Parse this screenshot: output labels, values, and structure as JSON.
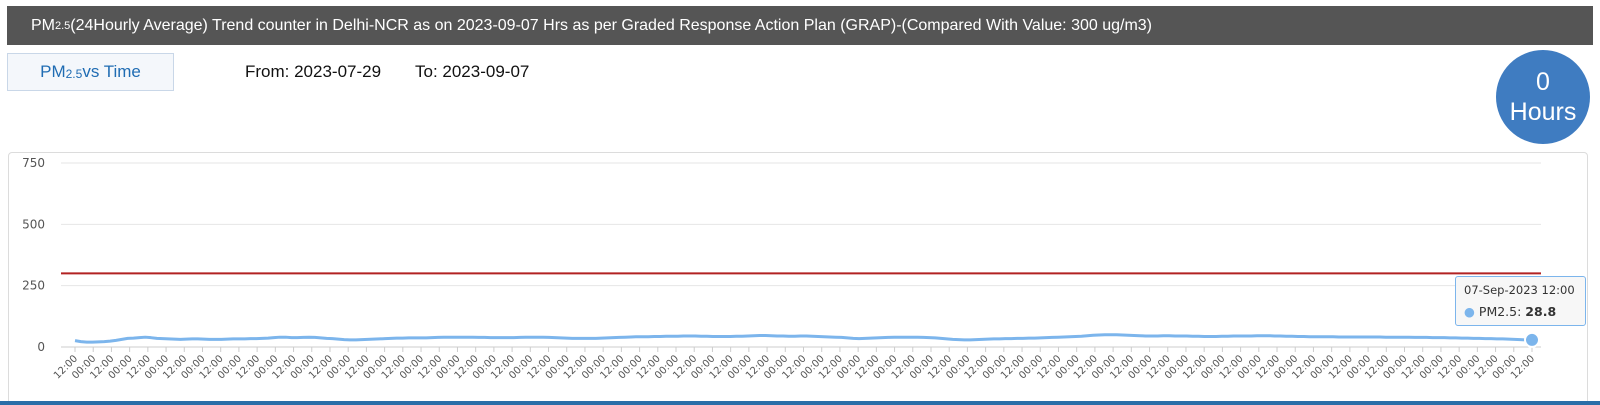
{
  "header": {
    "title_prefix": "PM",
    "title_sub": "2.5",
    "title_rest": " (24Hourly Average) Trend counter in Delhi-NCR as on 2023-09-07 Hrs as per Graded Response Action Plan (GRAP)-(Compared With Value: 300 ug/m3)"
  },
  "tab": {
    "label_prefix": "PM",
    "label_sub": "2.5",
    "label_rest": " vs Time"
  },
  "range": {
    "from": "From: 2023-07-29",
    "to": "To: 2023-09-07"
  },
  "badge": {
    "value": "0",
    "unit": "Hours"
  },
  "tooltip": {
    "date": "07-Sep-2023 12:00",
    "series": "PM2.5: ",
    "value": "28.8",
    "marker": "●"
  },
  "colors": {
    "line": "#7cb5ec",
    "threshold": "#b22222",
    "badge": "#3f7cc1",
    "header": "#555555",
    "bottom_bar": "#2a6ea8"
  },
  "chart_data": {
    "type": "line",
    "title": "",
    "xlabel": "",
    "ylabel": "",
    "ylim": [
      0,
      750
    ],
    "yticks": [
      0,
      250,
      500,
      750
    ],
    "grid": true,
    "legend": "none",
    "threshold": 300,
    "x_tick_labels": [
      "12:00",
      "00:00",
      "12:00",
      "00:00",
      "12:00",
      "00:00",
      "12:00",
      "00:00",
      "12:00",
      "00:00",
      "12:00",
      "00:00",
      "12:00",
      "00:00",
      "12:00",
      "00:00",
      "12:00",
      "00:00",
      "12:00",
      "00:00",
      "12:00",
      "00:00",
      "12:00",
      "00:00",
      "12:00",
      "00:00",
      "12:00",
      "00:00",
      "12:00",
      "00:00",
      "12:00",
      "00:00",
      "12:00",
      "00:00",
      "12:00",
      "00:00",
      "12:00",
      "00:00",
      "12:00",
      "00:00",
      "12:00",
      "00:00",
      "12:00",
      "00:00",
      "12:00",
      "00:00",
      "12:00",
      "00:00",
      "12:00",
      "00:00",
      "12:00",
      "00:00",
      "12:00",
      "00:00",
      "12:00",
      "00:00",
      "12:00",
      "00:00",
      "12:00",
      "00:00",
      "12:00",
      "00:00",
      "12:00",
      "00:00",
      "12:00",
      "00:00",
      "12:00",
      "00:00",
      "12:00",
      "00:00",
      "12:00",
      "00:00",
      "12:00",
      "00:00",
      "12:00",
      "00:00",
      "12:00",
      "00:00",
      "12:00",
      "00:00",
      "12:00"
    ],
    "series": [
      {
        "name": "PM2.5",
        "values": [
          26,
          22,
          20,
          20,
          21,
          22,
          24,
          27,
          31,
          35,
          36,
          38,
          40,
          38,
          35,
          34,
          33,
          32,
          31,
          32,
          33,
          33,
          32,
          31,
          31,
          31,
          32,
          33,
          33,
          33,
          34,
          34,
          35,
          36,
          38,
          40,
          40,
          38,
          38,
          39,
          40,
          39,
          37,
          35,
          34,
          32,
          30,
          29,
          29,
          30,
          31,
          32,
          33,
          34,
          35,
          36,
          36,
          37,
          37,
          37,
          37,
          38,
          39,
          40,
          40,
          40,
          40,
          40,
          40,
          39,
          39,
          38,
          38,
          38,
          38,
          38,
          39,
          40,
          40,
          40,
          40,
          39,
          38,
          37,
          36,
          35,
          35,
          35,
          35,
          35,
          36,
          37,
          38,
          39,
          40,
          41,
          42,
          42,
          42,
          43,
          43,
          44,
          44,
          44,
          45,
          45,
          45,
          44,
          44,
          43,
          43,
          43,
          43,
          44,
          44,
          45,
          46,
          47,
          47,
          46,
          45,
          45,
          44,
          44,
          45,
          45,
          44,
          43,
          42,
          41,
          40,
          39,
          37,
          35,
          34,
          35,
          36,
          37,
          38,
          39,
          40,
          40,
          40,
          40,
          40,
          39,
          38,
          37,
          35,
          33,
          31,
          30,
          29,
          29,
          30,
          31,
          32,
          33,
          33,
          34,
          34,
          35,
          35,
          36,
          36,
          37,
          38,
          39,
          40,
          41,
          42,
          43,
          44,
          46,
          48,
          49,
          50,
          50,
          50,
          49,
          48,
          47,
          46,
          45,
          45,
          45,
          46,
          46,
          45,
          45,
          45,
          44,
          44,
          43,
          43,
          43,
          44,
          44,
          45,
          45,
          45,
          45,
          46,
          46,
          46,
          45,
          45,
          44,
          44,
          43,
          43,
          42,
          42,
          42,
          42,
          42,
          41,
          41,
          41,
          41,
          41,
          41,
          41,
          41,
          40,
          40,
          40,
          40,
          40,
          39,
          39,
          39,
          38,
          38,
          38,
          37,
          37,
          36,
          36,
          35,
          35,
          34,
          34,
          33,
          33,
          32,
          31,
          30,
          29,
          28.8
        ]
      }
    ]
  }
}
